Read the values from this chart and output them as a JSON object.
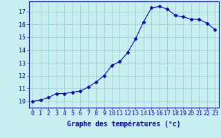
{
  "x": [
    0,
    1,
    2,
    3,
    4,
    5,
    6,
    7,
    8,
    9,
    10,
    11,
    12,
    13,
    14,
    15,
    16,
    17,
    18,
    19,
    20,
    21,
    22,
    23
  ],
  "y": [
    10.0,
    10.1,
    10.3,
    10.6,
    10.6,
    10.7,
    10.8,
    11.1,
    11.5,
    12.0,
    12.8,
    13.1,
    13.8,
    14.9,
    16.2,
    17.3,
    17.4,
    17.2,
    16.7,
    16.6,
    16.4,
    16.4,
    16.1,
    15.6
  ],
  "line_color": "#0000cc",
  "marker": "D",
  "marker_size": 2.5,
  "bg_color": "#c8f0f0",
  "grid_color": "#99cccc",
  "axis_color": "#0000cc",
  "xlabel": "Graphe des températures (°c)",
  "ylabel_ticks": [
    10,
    11,
    12,
    13,
    14,
    15,
    16,
    17
  ],
  "xlabel_ticks": [
    0,
    1,
    2,
    3,
    4,
    5,
    6,
    7,
    8,
    9,
    10,
    11,
    12,
    13,
    14,
    15,
    16,
    17,
    18,
    19,
    20,
    21,
    22,
    23
  ],
  "ylim": [
    9.5,
    17.8
  ],
  "xlim": [
    -0.5,
    23.5
  ],
  "tick_fontsize": 6,
  "xlabel_fontsize": 7
}
